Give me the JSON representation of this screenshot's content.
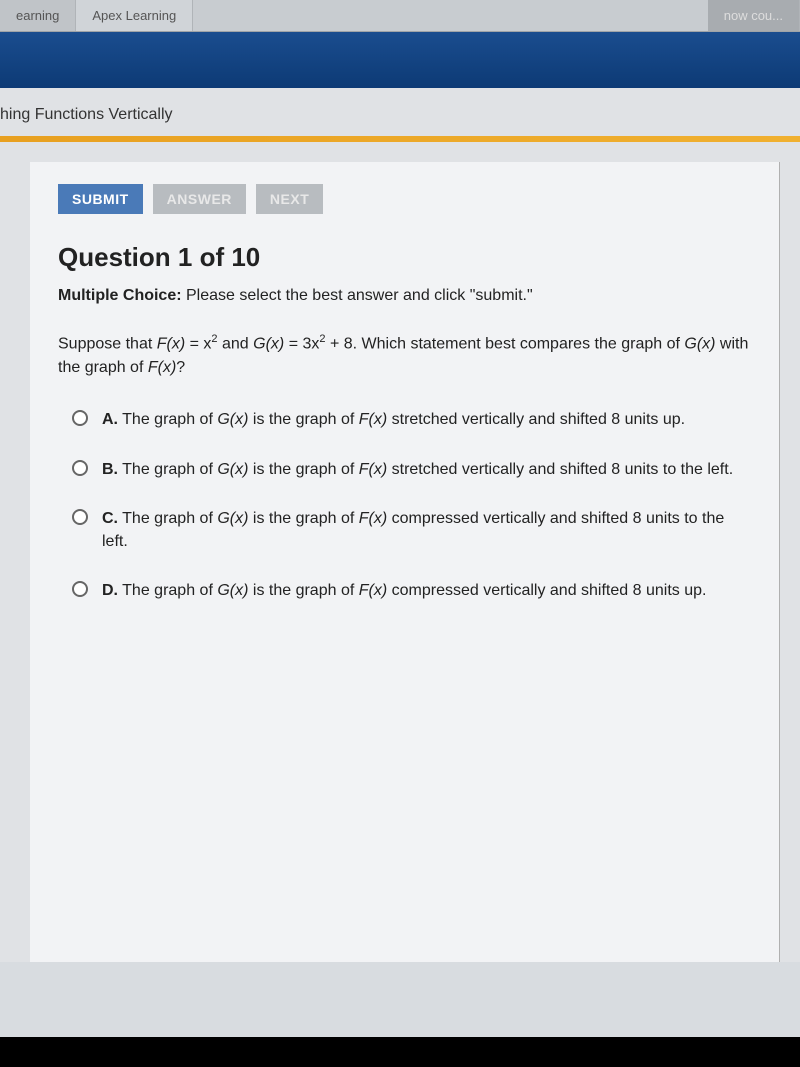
{
  "tabs": {
    "left": "earning",
    "center": "Apex Learning",
    "right_partial": "now cou..."
  },
  "lesson_title": "hing Functions Vertically",
  "buttons": {
    "submit": "SUBMIT",
    "answer": "ANSWER",
    "next": "NEXT"
  },
  "question": {
    "title": "Question 1 of 10",
    "instruction_label": "Multiple Choice:",
    "instruction_text": " Please select the best answer and click \"submit.\"",
    "prompt_prefix": "Suppose that ",
    "fx_label": "F(x)",
    "eq1": " = x",
    "sup1": "2",
    "and_text": " and ",
    "gx_label": "G(x)",
    "eq2": " = 3x",
    "sup2": "2",
    "plus8": " + 8. Which statement best compares the graph of ",
    "gx2": "G(x)",
    "with_text": " with the graph of ",
    "fx2": "F(x)",
    "qmark": "?"
  },
  "options": [
    {
      "letter": "A.",
      "pre": "  The graph of ",
      "g": "G(x)",
      "mid": " is the graph of ",
      "f": "F(x)",
      "post": " stretched vertically and shifted 8 units up."
    },
    {
      "letter": "B.",
      "pre": "  The graph of ",
      "g": "G(x)",
      "mid": " is the graph of ",
      "f": "F(x)",
      "post": " stretched vertically and shifted 8 units to the left."
    },
    {
      "letter": "C.",
      "pre": "  The graph of ",
      "g": "G(x)",
      "mid": " is the graph of ",
      "f": "F(x)",
      "post": " compressed vertically and shifted 8 units to the left."
    },
    {
      "letter": "D.",
      "pre": "  The graph of ",
      "g": "G(x)",
      "mid": " is the graph of ",
      "f": "F(x)",
      "post": " compressed vertically and shifted 8 units up."
    }
  ],
  "colors": {
    "submit_bg": "#4a7ab8",
    "disabled_bg": "#b8bcc0",
    "blue_bar": "#1a4d8f",
    "yellow_bar": "#e8a020"
  }
}
